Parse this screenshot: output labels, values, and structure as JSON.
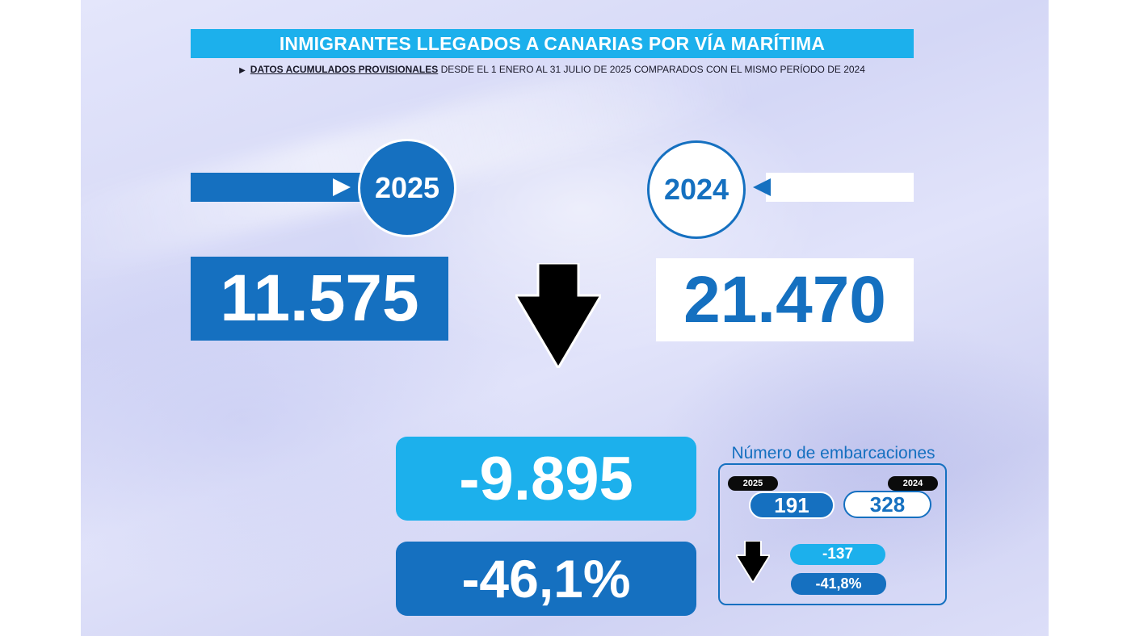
{
  "title": "INMIGRANTES LLEGADOS A CANARIAS POR VÍA MARÍTIMA",
  "subtitle": {
    "emphasis": "DATOS ACUMULADOS PROVISIONALES",
    "rest": "DESDE EL 1 ENERO AL 31 JULIO DE 2025 COMPARADOS CON EL MISMO PERÍODO DE 2024"
  },
  "current": {
    "year": "2025",
    "value": "11.575"
  },
  "previous": {
    "year": "2024",
    "value": "21.470"
  },
  "difference": {
    "absolute": "-9.895",
    "percent": "-46,1%"
  },
  "boats": {
    "title": "Número de embarcaciones",
    "current_year": "2025",
    "previous_year": "2024",
    "current_value": "191",
    "previous_value": "328",
    "difference": "-137",
    "percent": "-41,8%"
  },
  "colors": {
    "dark_blue": "#1570c0",
    "light_blue": "#1cb0ec",
    "arrow": "#000000"
  }
}
